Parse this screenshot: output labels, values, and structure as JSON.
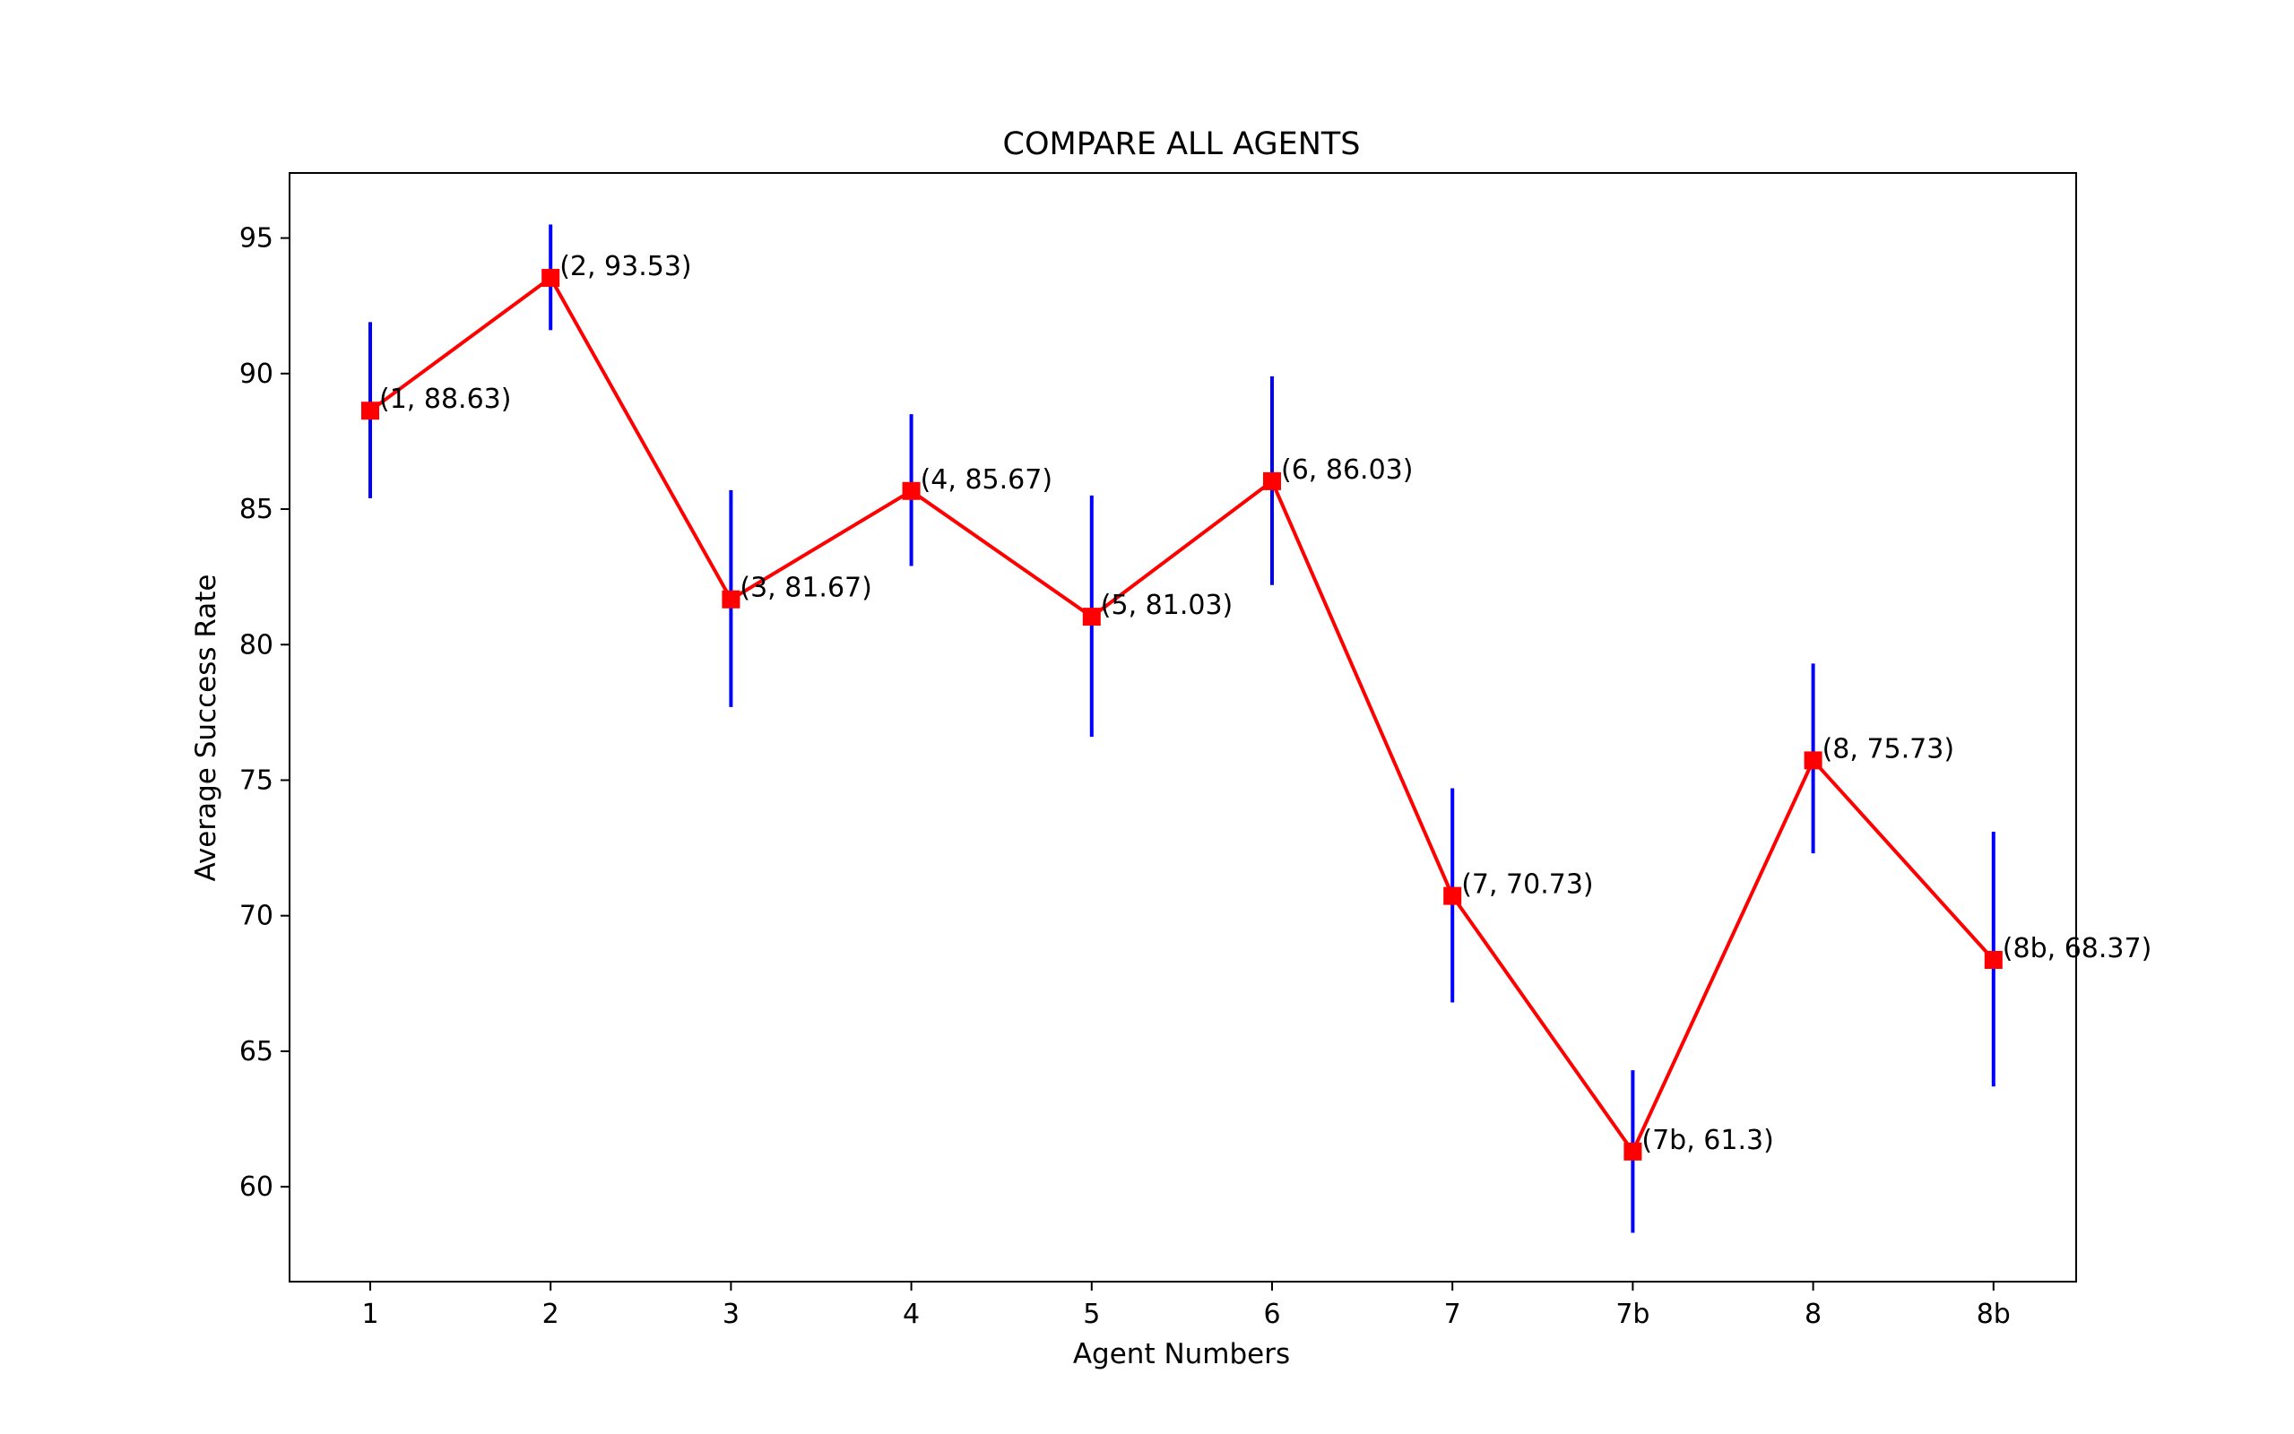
{
  "chart_data": {
    "type": "line",
    "title": "COMPARE ALL AGENTS",
    "xlabel": "Agent Numbers",
    "ylabel": "Average Success Rate",
    "categories": [
      "1",
      "2",
      "3",
      "4",
      "5",
      "6",
      "7",
      "7b",
      "8",
      "8b"
    ],
    "series": [
      {
        "values": [
          88.63,
          93.53,
          81.67,
          85.67,
          81.03,
          86.03,
          70.73,
          61.3,
          75.73,
          68.37
        ],
        "error_low": [
          85.4,
          91.6,
          77.7,
          82.9,
          76.6,
          82.2,
          66.8,
          58.3,
          72.3,
          63.7
        ],
        "error_high": [
          91.9,
          95.5,
          85.7,
          88.5,
          85.5,
          89.9,
          74.7,
          64.3,
          79.3,
          73.1
        ],
        "line_color": "#ff0000",
        "marker_color": "#ff0000",
        "error_color": "#0000ff"
      }
    ],
    "data_labels": [
      "(1, 88.63)",
      "(2, 93.53)",
      "(3, 81.67)",
      "(4, 85.67)",
      "(5, 81.03)",
      "(6, 86.03)",
      "(7, 70.73)",
      "(7b, 61.3)",
      "(8, 75.73)",
      "(8b, 68.37)"
    ],
    "ylim": [
      56.5,
      97.4
    ],
    "yticks": [
      60,
      65,
      70,
      75,
      80,
      85,
      90,
      95
    ],
    "grid": false,
    "legend": "none"
  }
}
